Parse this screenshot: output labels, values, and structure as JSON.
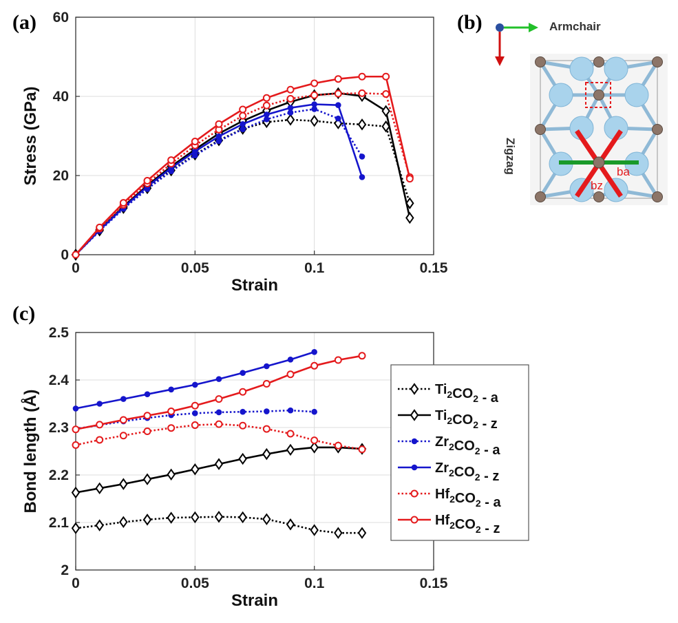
{
  "panels": {
    "a": "(a)",
    "b": "(b)",
    "c": "(c)"
  },
  "structure": {
    "armchair_label": "Armchair",
    "zigzag_label": "Zigzag",
    "bond_a_label": "ba",
    "bond_z_label": "bz",
    "colors": {
      "metal": "#a9d3ec",
      "carbon": "#8c7568",
      "armchair_arrow": "#22c02a",
      "zigzag_arrow": "#d01010",
      "bond": "#e41a1c",
      "green_bond": "#1a9a2a"
    }
  },
  "chart_data": [
    {
      "id": "a",
      "type": "line",
      "xlabel": "Strain",
      "ylabel": "Stress (GPa)",
      "xlim": [
        0,
        0.15
      ],
      "ylim": [
        0,
        60
      ],
      "xticks": [
        0,
        0.05,
        0.1,
        0.15
      ],
      "xtick_labels": [
        "0",
        "0.05",
        "0.1",
        "0.15"
      ],
      "yticks": [
        0,
        20,
        40,
        60
      ],
      "ytick_labels": [
        "0",
        "20",
        "40",
        "60"
      ],
      "grid": true,
      "series": [
        {
          "key": "ti_a",
          "color": "#000000",
          "marker": "diamond",
          "dash": "dotted",
          "x": [
            0,
            0.01,
            0.02,
            0.03,
            0.04,
            0.05,
            0.06,
            0.07,
            0.08,
            0.09,
            0.1,
            0.11,
            0.12,
            0.13,
            0.14
          ],
          "y": [
            0,
            6.1,
            11.8,
            16.8,
            21.3,
            25.3,
            28.9,
            31.8,
            33.5,
            34.1,
            33.8,
            33.2,
            32.9,
            32.4,
            13
          ]
        },
        {
          "key": "ti_z",
          "color": "#000000",
          "marker": "diamond",
          "dash": "solid",
          "x": [
            0,
            0.01,
            0.02,
            0.03,
            0.04,
            0.05,
            0.06,
            0.07,
            0.08,
            0.09,
            0.1,
            0.11,
            0.12,
            0.13,
            0.14
          ],
          "y": [
            0,
            6.3,
            12.2,
            17.5,
            22.3,
            26.6,
            30.6,
            33.8,
            36.4,
            38.6,
            40.3,
            40.8,
            40.1,
            36.3,
            9.3
          ]
        },
        {
          "key": "zr_a",
          "color": "#1515cc",
          "marker": "dot",
          "dash": "dotted",
          "x": [
            0,
            0.01,
            0.02,
            0.03,
            0.04,
            0.05,
            0.06,
            0.07,
            0.08,
            0.09,
            0.1,
            0.11,
            0.12
          ],
          "y": [
            0,
            6.0,
            11.6,
            16.6,
            21.1,
            25.1,
            28.7,
            31.7,
            34.2,
            35.9,
            36.8,
            34.4,
            24.8
          ]
        },
        {
          "key": "zr_z",
          "color": "#1515cc",
          "marker": "dot",
          "dash": "solid",
          "x": [
            0,
            0.01,
            0.02,
            0.03,
            0.04,
            0.05,
            0.06,
            0.07,
            0.08,
            0.09,
            0.1,
            0.11,
            0.12
          ],
          "y": [
            0,
            6.2,
            11.9,
            17.2,
            21.9,
            26.1,
            29.9,
            33.0,
            35.4,
            37.1,
            38.0,
            37.8,
            19.6
          ]
        },
        {
          "key": "hf_a",
          "color": "#e41a1c",
          "marker": "circle",
          "dash": "dotted",
          "x": [
            0,
            0.01,
            0.02,
            0.03,
            0.04,
            0.05,
            0.06,
            0.07,
            0.08,
            0.09,
            0.1,
            0.11,
            0.12,
            0.13,
            0.14
          ],
          "y": [
            0,
            6.6,
            12.6,
            18.0,
            23.0,
            27.6,
            31.6,
            35.1,
            37.7,
            39.4,
            40.3,
            40.7,
            40.8,
            40.6,
            19.6
          ]
        },
        {
          "key": "hf_z",
          "color": "#e41a1c",
          "marker": "circle",
          "dash": "solid",
          "x": [
            0,
            0.01,
            0.02,
            0.03,
            0.04,
            0.05,
            0.06,
            0.07,
            0.08,
            0.09,
            0.1,
            0.11,
            0.12,
            0.13,
            0.14
          ],
          "y": [
            0,
            6.9,
            13.1,
            18.7,
            23.9,
            28.6,
            33.0,
            36.7,
            39.6,
            41.7,
            43.3,
            44.4,
            45.0,
            45.0,
            19.2
          ]
        }
      ]
    },
    {
      "id": "c",
      "type": "line",
      "xlabel": "Strain",
      "ylabel": "Bond length (Å)",
      "xlim": [
        0,
        0.15
      ],
      "ylim": [
        2,
        2.5
      ],
      "xticks": [
        0,
        0.05,
        0.1,
        0.15
      ],
      "xtick_labels": [
        "0",
        "0.05",
        "0.1",
        "0.15"
      ],
      "yticks": [
        2,
        2.1,
        2.2,
        2.3,
        2.4,
        2.5
      ],
      "ytick_labels": [
        "2",
        "2.1",
        "2.2",
        "2.3",
        "2.4",
        "2.5"
      ],
      "grid": true,
      "legend": "right",
      "series": [
        {
          "key": "ti_a",
          "color": "#000000",
          "marker": "diamond",
          "dash": "dotted",
          "x": [
            0,
            0.01,
            0.02,
            0.03,
            0.04,
            0.05,
            0.06,
            0.07,
            0.08,
            0.09,
            0.1,
            0.11,
            0.12
          ],
          "y": [
            2.088,
            2.094,
            2.101,
            2.106,
            2.11,
            2.111,
            2.112,
            2.111,
            2.107,
            2.096,
            2.084,
            2.078,
            2.078
          ]
        },
        {
          "key": "ti_z",
          "color": "#000000",
          "marker": "diamond",
          "dash": "solid",
          "x": [
            0,
            0.01,
            0.02,
            0.03,
            0.04,
            0.05,
            0.06,
            0.07,
            0.08,
            0.09,
            0.1,
            0.11,
            0.12
          ],
          "y": [
            2.163,
            2.172,
            2.181,
            2.191,
            2.201,
            2.212,
            2.223,
            2.234,
            2.244,
            2.253,
            2.258,
            2.258,
            2.255
          ]
        },
        {
          "key": "zr_a",
          "color": "#1515cc",
          "marker": "dot",
          "dash": "dotted",
          "x": [
            0,
            0.01,
            0.02,
            0.03,
            0.04,
            0.05,
            0.06,
            0.07,
            0.08,
            0.09,
            0.1
          ],
          "y": [
            2.297,
            2.305,
            2.313,
            2.32,
            2.326,
            2.33,
            2.332,
            2.333,
            2.334,
            2.336,
            2.333
          ]
        },
        {
          "key": "zr_z",
          "color": "#1515cc",
          "marker": "dot",
          "dash": "solid",
          "x": [
            0,
            0.01,
            0.02,
            0.03,
            0.04,
            0.05,
            0.06,
            0.07,
            0.08,
            0.09,
            0.1
          ],
          "y": [
            2.34,
            2.35,
            2.36,
            2.37,
            2.38,
            2.39,
            2.402,
            2.415,
            2.429,
            2.443,
            2.459
          ]
        },
        {
          "key": "hf_a",
          "color": "#e41a1c",
          "marker": "circle",
          "dash": "dotted",
          "x": [
            0,
            0.01,
            0.02,
            0.03,
            0.04,
            0.05,
            0.06,
            0.07,
            0.08,
            0.09,
            0.1,
            0.11,
            0.12
          ],
          "y": [
            2.263,
            2.274,
            2.283,
            2.292,
            2.299,
            2.305,
            2.307,
            2.304,
            2.297,
            2.287,
            2.273,
            2.262,
            2.254
          ]
        },
        {
          "key": "hf_z",
          "color": "#e41a1c",
          "marker": "circle",
          "dash": "solid",
          "x": [
            0,
            0.01,
            0.02,
            0.03,
            0.04,
            0.05,
            0.06,
            0.07,
            0.08,
            0.09,
            0.1,
            0.11,
            0.12
          ],
          "y": [
            2.296,
            2.306,
            2.316,
            2.325,
            2.334,
            2.346,
            2.36,
            2.375,
            2.392,
            2.412,
            2.43,
            2.442,
            2.451
          ]
        }
      ]
    }
  ],
  "legend_entries": [
    {
      "key": "ti_a",
      "base": "Ti",
      "sub1": "2",
      "mid": "CO",
      "sub2": "2",
      "suffix": " - a"
    },
    {
      "key": "ti_z",
      "base": "Ti",
      "sub1": "2",
      "mid": "CO",
      "sub2": "2",
      "suffix": " - z"
    },
    {
      "key": "zr_a",
      "base": "Zr",
      "sub1": "2",
      "mid": "CO",
      "sub2": "2",
      "suffix": " - a"
    },
    {
      "key": "zr_z",
      "base": "Zr",
      "sub1": "2",
      "mid": "CO",
      "sub2": "2",
      "suffix": " - z"
    },
    {
      "key": "hf_a",
      "base": "Hf",
      "sub1": "2",
      "mid": "CO",
      "sub2": "2",
      "suffix": " - a"
    },
    {
      "key": "hf_z",
      "base": "Hf",
      "sub1": "2",
      "mid": "CO",
      "sub2": "2",
      "suffix": " - z"
    }
  ]
}
